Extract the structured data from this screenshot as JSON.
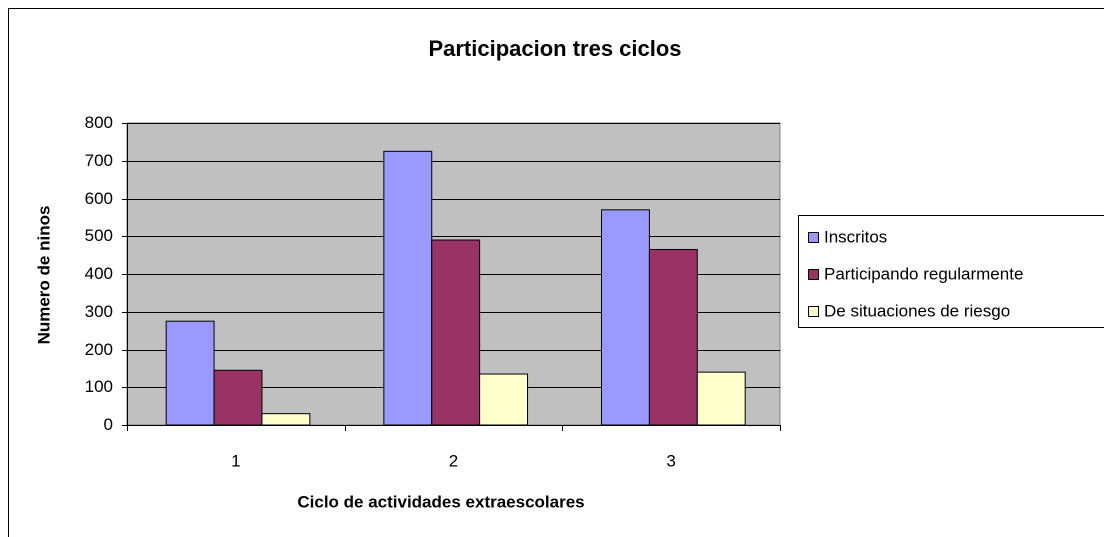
{
  "chart_data": {
    "type": "bar",
    "title": "Participacion tres ciclos",
    "x_label": "Ciclo de actividades extraescolares",
    "y_label": "Numero de ninos",
    "categories": [
      "1",
      "2",
      "3"
    ],
    "series": [
      {
        "name": "Inscritos",
        "color": "#9999ff",
        "values": [
          275,
          725,
          570
        ]
      },
      {
        "name": "Participando regularmente",
        "color": "#993366",
        "values": [
          145,
          490,
          465
        ]
      },
      {
        "name": "De situaciones de riesgo",
        "color": "#ffffcc",
        "values": [
          30,
          135,
          140
        ]
      }
    ],
    "ylim": [
      0,
      800
    ],
    "yticks": [
      0,
      100,
      200,
      300,
      400,
      500,
      600,
      700,
      800
    ],
    "grid": true,
    "legend": "right",
    "plot_background": "#c0c0c0"
  }
}
